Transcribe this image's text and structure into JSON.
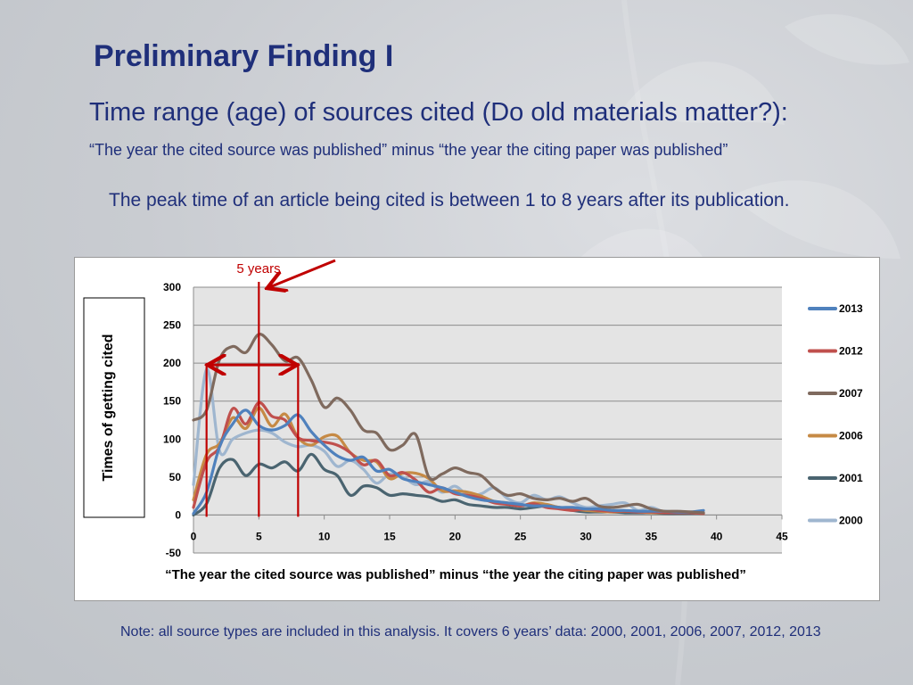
{
  "slide": {
    "title": "Preliminary Finding I",
    "subtitle": "Time range (age) of sources cited (Do old materials matter?):",
    "formula": "“The year the cited source was published” minus “the year the citing paper was published”",
    "finding": "The peak time of an article being cited is between 1 to 8 years after its publication.",
    "note": "Note: all source types are included in this analysis.  It covers 6 years’ data: 2000, 2001, 2006, 2007, 2012, 2013"
  },
  "chart_data": {
    "type": "line",
    "xlabel": "“The year the cited source was published” minus “the year the citing paper was published”",
    "ylabel": "Times  of getting cited",
    "xlim": [
      0,
      45
    ],
    "ylim": [
      -50,
      300
    ],
    "xticks": [
      0,
      5,
      10,
      15,
      20,
      25,
      30,
      35,
      40,
      45
    ],
    "yticks": [
      -50,
      0,
      50,
      100,
      150,
      200,
      250,
      300
    ],
    "grid": "horizontal",
    "legend": "right",
    "series": [
      {
        "name": "2013",
        "color": "#4f81bd",
        "x": [
          0,
          1,
          2,
          3,
          4,
          5,
          6,
          7,
          8,
          9,
          10,
          11,
          12,
          13,
          14,
          15,
          16,
          17,
          18,
          19,
          20,
          21,
          22,
          23,
          24,
          25,
          26,
          27,
          28,
          29,
          30,
          31,
          32,
          33,
          34,
          35,
          36,
          37,
          38,
          39
        ],
        "values": [
          2,
          30,
          90,
          120,
          138,
          118,
          112,
          118,
          132,
          110,
          92,
          78,
          72,
          76,
          58,
          60,
          48,
          44,
          40,
          36,
          30,
          24,
          20,
          18,
          16,
          14,
          12,
          12,
          10,
          10,
          8,
          8,
          6,
          6,
          5,
          5,
          5,
          4,
          4,
          6
        ]
      },
      {
        "name": "2012",
        "color": "#c0504d",
        "x": [
          0,
          1,
          2,
          3,
          4,
          5,
          6,
          7,
          8,
          9,
          10,
          11,
          12,
          13,
          14,
          15,
          16,
          17,
          18,
          19,
          20,
          21,
          22,
          23,
          24,
          25,
          26,
          27,
          28,
          29,
          30,
          31,
          32,
          33,
          34,
          35,
          36,
          37,
          38,
          39
        ],
        "values": [
          10,
          70,
          90,
          140,
          120,
          148,
          130,
          125,
          102,
          98,
          96,
          92,
          82,
          66,
          72,
          52,
          56,
          46,
          30,
          36,
          28,
          26,
          22,
          16,
          14,
          12,
          15,
          10,
          8,
          6,
          8,
          6,
          5,
          5,
          4,
          4,
          3,
          3,
          3,
          2
        ]
      },
      {
        "name": "2007",
        "color": "#7f6a5e",
        "x": [
          0,
          1,
          2,
          3,
          4,
          5,
          6,
          7,
          8,
          9,
          10,
          11,
          12,
          13,
          14,
          15,
          16,
          17,
          18,
          19,
          20,
          21,
          22,
          23,
          24,
          25,
          26,
          27,
          28,
          29,
          30,
          31,
          32,
          33,
          34,
          35,
          36,
          37,
          38,
          39
        ],
        "values": [
          125,
          138,
          205,
          222,
          214,
          238,
          224,
          203,
          207,
          178,
          142,
          154,
          138,
          112,
          108,
          86,
          92,
          106,
          50,
          54,
          62,
          56,
          52,
          36,
          26,
          28,
          22,
          20,
          22,
          18,
          22,
          12,
          10,
          12,
          14,
          8,
          5,
          5,
          4,
          3
        ]
      },
      {
        "name": "2006",
        "color": "#c68a45",
        "x": [
          0,
          1,
          2,
          3,
          4,
          5,
          6,
          7,
          8,
          9,
          10,
          11,
          12,
          13,
          14,
          15,
          16,
          17,
          18,
          19,
          20,
          21,
          22,
          23,
          24,
          25,
          26,
          27,
          28,
          29,
          30,
          31,
          32,
          33,
          34,
          35,
          36,
          37,
          38,
          39
        ],
        "values": [
          20,
          80,
          94,
          128,
          114,
          141,
          117,
          133,
          102,
          92,
          103,
          104,
          82,
          72,
          70,
          48,
          55,
          55,
          48,
          32,
          32,
          30,
          25,
          18,
          16,
          12,
          16,
          14,
          10,
          8,
          6,
          5,
          4,
          5,
          4,
          3,
          3,
          3,
          3,
          2
        ]
      },
      {
        "name": "2001",
        "color": "#4a6470",
        "x": [
          0,
          1,
          2,
          3,
          4,
          5,
          6,
          7,
          8,
          9,
          10,
          11,
          12,
          13,
          14,
          15,
          16,
          17,
          18,
          19,
          20,
          21,
          22,
          23,
          24,
          25,
          26,
          27,
          28,
          29,
          30,
          31,
          32,
          33,
          34,
          35,
          36,
          37,
          38,
          39
        ],
        "values": [
          0,
          15,
          62,
          73,
          52,
          67,
          62,
          70,
          58,
          80,
          60,
          52,
          26,
          38,
          36,
          26,
          28,
          26,
          24,
          18,
          20,
          14,
          12,
          10,
          10,
          8,
          10,
          12,
          10,
          6,
          4,
          4,
          4,
          3,
          3,
          3,
          2,
          2,
          2,
          2
        ]
      },
      {
        "name": "2000",
        "color": "#9fb6cf",
        "x": [
          0,
          1,
          2,
          3,
          4,
          5,
          6,
          7,
          8,
          9,
          10,
          11,
          12,
          13,
          14,
          15,
          16,
          17,
          18,
          19,
          20,
          21,
          22,
          23,
          24,
          25,
          26,
          27,
          28,
          29,
          30,
          31,
          32,
          33,
          34,
          35,
          36,
          37,
          38,
          39
        ],
        "values": [
          40,
          192,
          84,
          100,
          108,
          112,
          108,
          96,
          90,
          92,
          84,
          64,
          72,
          60,
          42,
          54,
          50,
          40,
          44,
          30,
          38,
          26,
          28,
          36,
          22,
          16,
          26,
          20,
          24,
          16,
          10,
          12,
          14,
          16,
          6,
          10,
          4,
          3,
          2,
          2
        ]
      }
    ],
    "annotations": {
      "label": "5 years",
      "markers_x": [
        1,
        5,
        8
      ],
      "span_x": [
        1,
        8
      ],
      "span_y": 200,
      "arrow_to_x": 5,
      "color": "#c00000"
    }
  }
}
